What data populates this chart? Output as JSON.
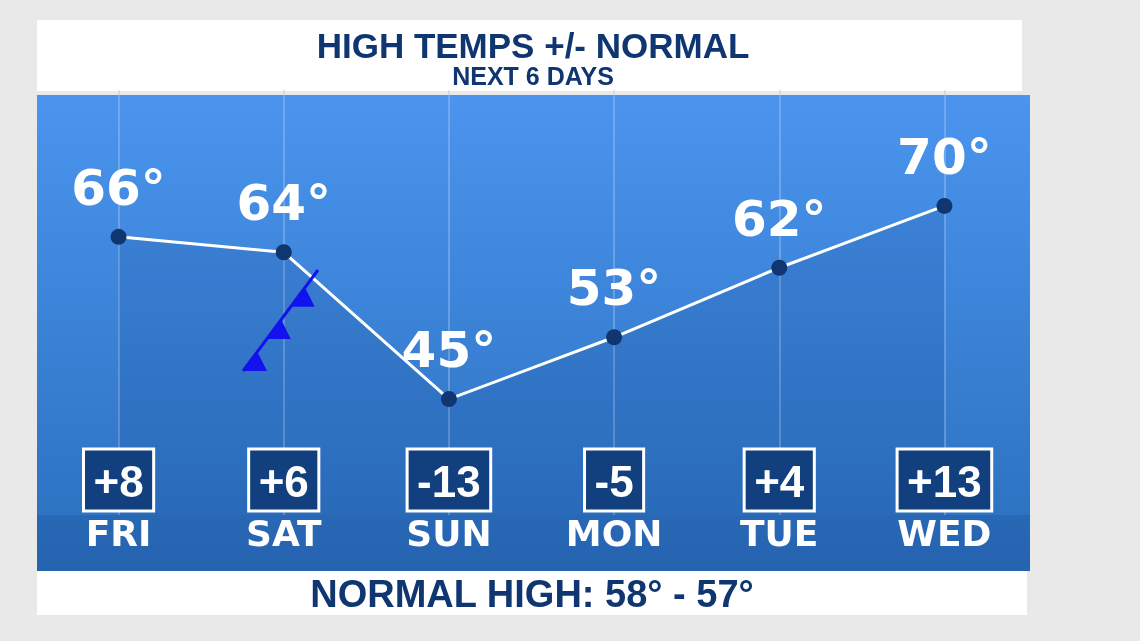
{
  "chart_data": {
    "type": "area",
    "title": "HIGH TEMPS +/- NORMAL",
    "subtitle": "NEXT 6 DAYS",
    "categories": [
      "FRI",
      "SAT",
      "SUN",
      "MON",
      "TUE",
      "WED"
    ],
    "values": [
      66,
      64,
      45,
      53,
      62,
      70
    ],
    "value_labels": [
      "66°",
      "64°",
      "45°",
      "53°",
      "62°",
      "70°"
    ],
    "color": "#ffffff",
    "tick_labels": "x",
    "grid": "x",
    "marker": "circle",
    "line_style": "solid",
    "annotations": [
      "+8",
      "+6",
      "-13",
      "-5",
      "+4",
      "+13",
      "NORMAL HIGH: 58° - 57°"
    ]
  }
}
